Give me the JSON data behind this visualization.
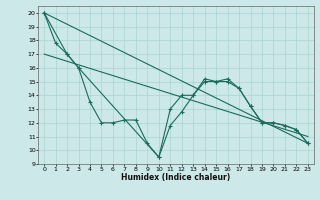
{
  "title": "",
  "xlabel": "Humidex (Indice chaleur)",
  "bg_color": "#cce8e8",
  "line_color": "#1a6b5e",
  "grid_color": "#aad4d0",
  "xlim": [
    -0.5,
    23.5
  ],
  "ylim": [
    9,
    20.5
  ],
  "xticks": [
    0,
    1,
    2,
    3,
    4,
    5,
    6,
    7,
    8,
    9,
    10,
    11,
    12,
    13,
    14,
    15,
    16,
    17,
    18,
    19,
    20,
    21,
    22,
    23
  ],
  "yticks": [
    9,
    10,
    11,
    12,
    13,
    14,
    15,
    16,
    17,
    18,
    19,
    20
  ],
  "series1_x": [
    0,
    1,
    2,
    3,
    4,
    5,
    6,
    7,
    8,
    9,
    10,
    11,
    12,
    13,
    14,
    15,
    16,
    17,
    18,
    19,
    20,
    21,
    22,
    23
  ],
  "series1_y": [
    20.0,
    17.8,
    17.0,
    16.0,
    13.5,
    12.0,
    12.0,
    12.2,
    12.2,
    10.5,
    9.5,
    11.8,
    12.8,
    14.0,
    15.0,
    15.0,
    15.0,
    14.5,
    13.2,
    12.0,
    12.0,
    11.8,
    11.5,
    10.5
  ],
  "series2_x": [
    0,
    2,
    3,
    10,
    11,
    12,
    13,
    14,
    15,
    16,
    17,
    18,
    19,
    20,
    21,
    22,
    23
  ],
  "series2_y": [
    20.0,
    17.0,
    16.0,
    9.5,
    13.0,
    14.0,
    14.0,
    15.2,
    15.0,
    15.2,
    14.5,
    13.2,
    12.0,
    12.0,
    11.8,
    11.5,
    10.5
  ],
  "series3_x": [
    0,
    23
  ],
  "series3_y": [
    20.0,
    10.5
  ],
  "series4_x": [
    0,
    23
  ],
  "series4_y": [
    17.0,
    11.0
  ]
}
